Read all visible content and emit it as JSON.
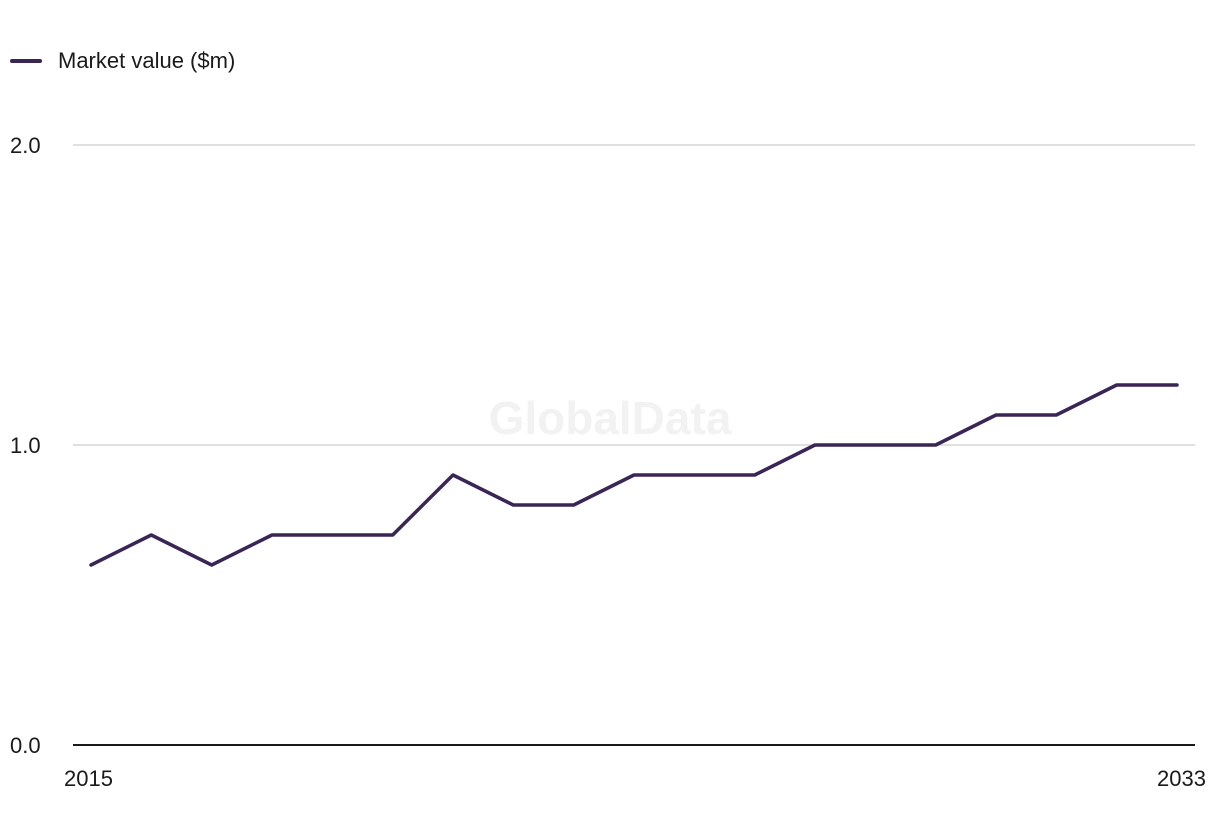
{
  "chart_data": {
    "type": "line",
    "title": "",
    "xlabel": "",
    "ylabel": "",
    "x": [
      2015,
      2016,
      2017,
      2018,
      2019,
      2020,
      2021,
      2022,
      2023,
      2024,
      2025,
      2026,
      2027,
      2028,
      2029,
      2030,
      2031,
      2032,
      2033
    ],
    "x_tick_labels": [
      "2015",
      "2033"
    ],
    "y_tick_labels": [
      "0.0",
      "1.0",
      "2.0"
    ],
    "ylim": [
      0,
      2
    ],
    "grid": true,
    "legend_position": "top-left",
    "series": [
      {
        "name": "Market value ($m)",
        "color": "#3a2555",
        "values": [
          0.6,
          0.7,
          0.6,
          0.7,
          0.7,
          0.7,
          0.9,
          0.8,
          0.8,
          0.9,
          0.9,
          0.9,
          1.0,
          1.0,
          1.0,
          1.1,
          1.1,
          1.2,
          1.2
        ]
      }
    ],
    "watermark": "GlobalData"
  }
}
